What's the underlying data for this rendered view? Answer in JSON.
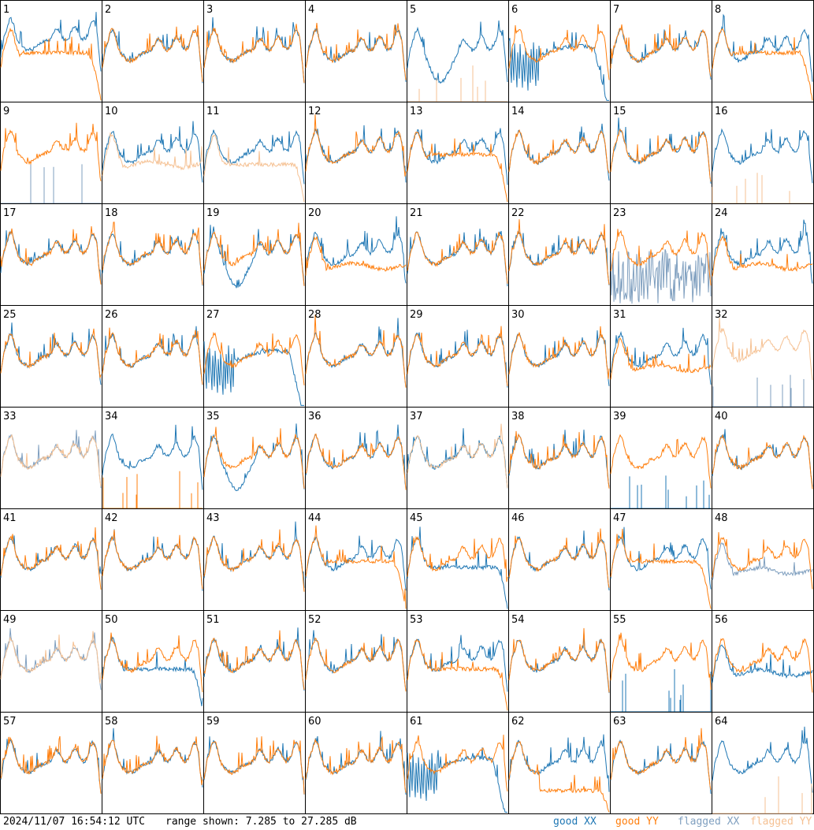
{
  "chart_data": {
    "type": "line",
    "panel_count": 64,
    "panel_labels": [
      "1",
      "2",
      "3",
      "4",
      "5",
      "6",
      "7",
      "8",
      "9",
      "10",
      "11",
      "12",
      "13",
      "14",
      "15",
      "16",
      "17",
      "18",
      "19",
      "20",
      "21",
      "22",
      "23",
      "24",
      "25",
      "26",
      "27",
      "28",
      "29",
      "30",
      "31",
      "32",
      "33",
      "34",
      "35",
      "36",
      "37",
      "38",
      "39",
      "40",
      "41",
      "42",
      "43",
      "44",
      "45",
      "46",
      "47",
      "48",
      "49",
      "50",
      "51",
      "52",
      "53",
      "54",
      "55",
      "56",
      "57",
      "58",
      "59",
      "60",
      "61",
      "62",
      "63",
      "64"
    ],
    "ylim_db": [
      7.285,
      27.285
    ],
    "series": [
      {
        "key": "good_xx",
        "name": "good XX",
        "color": "#1f77b4"
      },
      {
        "key": "good_yy",
        "name": "good YY",
        "color": "#ff7f0e"
      },
      {
        "key": "flagged_xx",
        "name": "flagged XX",
        "color": "#7f9fbf"
      },
      {
        "key": "flagged_yy",
        "name": "flagged YY",
        "color": "#f5c193"
      }
    ],
    "panels": {
      "1": {
        "xx": "elevated",
        "yy": "rolloff",
        "flag_xx": false,
        "flag_yy": false
      },
      "5": {
        "xx": "dip",
        "yy": "spikes_low",
        "flag_xx": false,
        "flag_yy": true
      },
      "6": {
        "xx": "dip_deep",
        "yy": "normal"
      },
      "8": {
        "xx": "normal",
        "yy": "rolloff"
      },
      "9": {
        "xx": "spikes_low",
        "yy": "normal",
        "flag_xx": true
      },
      "10": {
        "xx": "normal",
        "yy": "flat_low",
        "flag_yy": true
      },
      "11": {
        "xx": "normal",
        "yy": "flat_low_rolloff",
        "flag_yy": true
      },
      "13": {
        "xx": "normal",
        "yy": "rolloff"
      },
      "16": {
        "xx": "normal",
        "yy": "spikes_low",
        "flag_yy": true
      },
      "19": {
        "xx": "dip",
        "yy": "normal"
      },
      "20": {
        "xx": "normal",
        "yy": "flat_low"
      },
      "23": {
        "xx": "noise",
        "yy": "normal",
        "flag_xx": true
      },
      "24": {
        "xx": "normal",
        "yy": "flat_low"
      },
      "27": {
        "xx": "dip_deep",
        "yy": "normal"
      },
      "31": {
        "xx": "normal",
        "yy": "flat_low"
      },
      "32": {
        "xx": "spikes_low",
        "yy": "noisy_high",
        "flag_xx": true,
        "flag_yy": true
      },
      "33": {
        "xx": "normal",
        "yy": "normal",
        "flag_xx": true,
        "flag_yy": true
      },
      "34": {
        "xx": "normal",
        "yy": "spikes_low"
      },
      "35": {
        "xx": "dip",
        "yy": "normal"
      },
      "37": {
        "xx": "normal",
        "yy": "normal",
        "flag_yy": true
      },
      "39": {
        "xx": "spikes_low",
        "yy": "normal"
      },
      "44": {
        "xx": "normal",
        "yy": "rolloff"
      },
      "45": {
        "xx": "rolloff_dip",
        "yy": "normal"
      },
      "47": {
        "xx": "normal",
        "yy": "rolloff"
      },
      "48": {
        "xx": "flat_low",
        "yy": "normal",
        "flag_xx": true
      },
      "49": {
        "xx": "normal",
        "yy": "normal",
        "flag_xx": true,
        "flag_yy": true
      },
      "50": {
        "xx": "rolloff_dip",
        "yy": "normal"
      },
      "53": {
        "xx": "normal",
        "yy": "rolloff_dip"
      },
      "55": {
        "xx": "spikes_low",
        "yy": "normal"
      },
      "56": {
        "xx": "flat_low",
        "yy": "normal"
      },
      "61": {
        "xx": "dip_deep",
        "yy": "normal"
      },
      "62": {
        "xx": "normal",
        "yy": "rolloff_low"
      },
      "64": {
        "xx": "normal",
        "yy": "spikes_low",
        "flag_yy": true
      }
    }
  },
  "footer": {
    "timestamp": "2024/11/07 16:54:12 UTC",
    "range_text": "range shown: 7.285 to 27.285 dB",
    "legend_good_xx": "good XX",
    "legend_good_yy": "good YY",
    "legend_flagged_xx": "flagged XX",
    "legend_flagged_yy": "flagged YY",
    "color_good_xx": "#1f77b4",
    "color_good_yy": "#ff7f0e",
    "color_flagged_xx": "#7f9fbf",
    "color_flagged_yy": "#f5c193"
  }
}
